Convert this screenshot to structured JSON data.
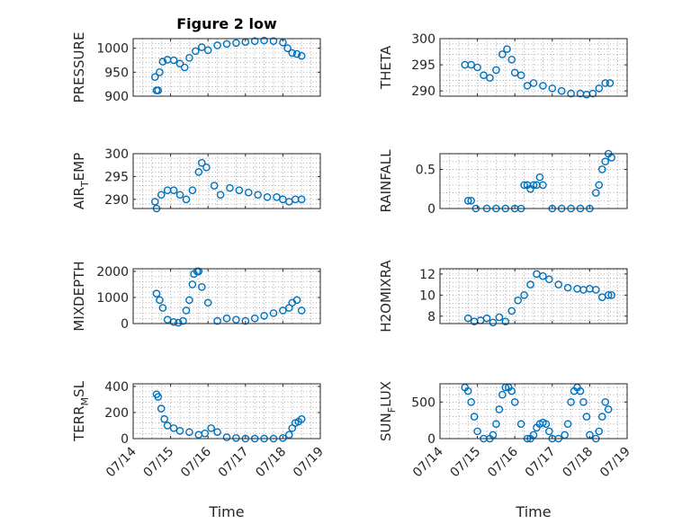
{
  "figure": {
    "title": "Figure 2 low",
    "marker_color": "#0072BD",
    "xlabel": "Time",
    "xtick_labels": [
      "07/14",
      "07/15",
      "07/16",
      "07/17",
      "07/18",
      "07/19"
    ]
  },
  "chart_data": [
    {
      "type": "scatter",
      "ylabel": "PRESSURE",
      "ylim": [
        900,
        1020
      ],
      "yticks": [
        900,
        950,
        1000
      ],
      "xlim": [
        "07/14",
        "07/19"
      ],
      "grid": true,
      "x": [
        "07/14 14:00",
        "07/14 15:00",
        "07/14 16:00",
        "07/14 17:00",
        "07/14 19:00",
        "07/14 22:00",
        "07/15 02:00",
        "07/15 06:00",
        "07/15 09:00",
        "07/15 12:00",
        "07/15 16:00",
        "07/15 20:00",
        "07/16 00:00",
        "07/16 06:00",
        "07/16 12:00",
        "07/16 18:00",
        "07/17 00:00",
        "07/17 06:00",
        "07/17 12:00",
        "07/17 18:00",
        "07/18 00:00",
        "07/18 03:00",
        "07/18 06:00",
        "07/18 09:00",
        "07/18 12:00"
      ],
      "values": [
        940,
        912,
        912,
        950,
        972,
        976,
        975,
        968,
        960,
        980,
        994,
        1002,
        996,
        1006,
        1009,
        1011,
        1013,
        1015,
        1016,
        1015,
        1012,
        1000,
        990,
        988,
        984
      ]
    },
    {
      "type": "scatter",
      "ylabel": "THETA",
      "ylim": [
        289,
        300
      ],
      "yticks": [
        290,
        295,
        300
      ],
      "xlim": [
        "07/14",
        "07/19"
      ],
      "grid": true,
      "x": [
        "07/14 16:00",
        "07/14 20:00",
        "07/15 00:00",
        "07/15 04:00",
        "07/15 08:00",
        "07/15 12:00",
        "07/15 16:00",
        "07/15 19:00",
        "07/15 22:00",
        "07/16 00:00",
        "07/16 04:00",
        "07/16 08:00",
        "07/16 12:00",
        "07/16 18:00",
        "07/17 00:00",
        "07/17 06:00",
        "07/17 12:00",
        "07/17 18:00",
        "07/17 22:00",
        "07/18 02:00",
        "07/18 06:00",
        "07/18 10:00",
        "07/18 13:00"
      ],
      "values": [
        295,
        295,
        294.5,
        293,
        292.5,
        294,
        297,
        298,
        296,
        293.5,
        293,
        291,
        291.5,
        291,
        290.5,
        290,
        289.5,
        289.5,
        289.3,
        289.5,
        290.5,
        291.5,
        291.5
      ]
    },
    {
      "type": "scatter",
      "ylabel": "AIR_TEMP",
      "ylim": [
        288,
        300
      ],
      "yticks": [
        290,
        295,
        300
      ],
      "xlim": [
        "07/14",
        "07/19"
      ],
      "grid": true,
      "x": [
        "07/14 14:00",
        "07/14 15:00",
        "07/14 18:00",
        "07/14 22:00",
        "07/15 02:00",
        "07/15 06:00",
        "07/15 10:00",
        "07/15 14:00",
        "07/15 18:00",
        "07/15 20:00",
        "07/15 23:00",
        "07/16 04:00",
        "07/16 08:00",
        "07/16 14:00",
        "07/16 20:00",
        "07/17 02:00",
        "07/17 08:00",
        "07/17 14:00",
        "07/17 20:00",
        "07/18 00:00",
        "07/18 04:00",
        "07/18 08:00",
        "07/18 12:00"
      ],
      "values": [
        289.5,
        288,
        291,
        292,
        292,
        291,
        290,
        292,
        296,
        298,
        297,
        293,
        291,
        292.5,
        292,
        291.5,
        291,
        290.5,
        290.5,
        290,
        289.5,
        290,
        290
      ]
    },
    {
      "type": "scatter",
      "ylabel": "RAINFALL",
      "ylim": [
        0,
        0.7
      ],
      "yticks": [
        0,
        0.5
      ],
      "xlim": [
        "07/14",
        "07/19"
      ],
      "grid": true,
      "x": [
        "07/14 18:00",
        "07/14 20:00",
        "07/14 23:00",
        "07/15 06:00",
        "07/15 12:00",
        "07/15 18:00",
        "07/16 00:00",
        "07/16 04:00",
        "07/16 06:00",
        "07/16 08:00",
        "07/16 10:00",
        "07/16 12:00",
        "07/16 14:00",
        "07/16 16:00",
        "07/16 18:00",
        "07/17 00:00",
        "07/17 06:00",
        "07/17 12:00",
        "07/17 18:00",
        "07/18 00:00",
        "07/18 04:00",
        "07/18 06:00",
        "07/18 08:00",
        "07/18 10:00",
        "07/18 12:00",
        "07/18 14:00"
      ],
      "values": [
        0.1,
        0.1,
        0,
        0,
        0,
        0,
        0,
        0,
        0.3,
        0.3,
        0.25,
        0.3,
        0.3,
        0.4,
        0.3,
        0,
        0,
        0,
        0,
        0,
        0.2,
        0.3,
        0.5,
        0.6,
        0.7,
        0.65
      ]
    },
    {
      "type": "scatter",
      "ylabel": "MIXDEPTH",
      "ylim": [
        0,
        2100
      ],
      "yticks": [
        0,
        1000,
        2000
      ],
      "xlim": [
        "07/14",
        "07/19"
      ],
      "grid": true,
      "x": [
        "07/14 15:00",
        "07/14 17:00",
        "07/14 19:00",
        "07/14 22:00",
        "07/15 02:00",
        "07/15 05:00",
        "07/15 08:00",
        "07/15 10:00",
        "07/15 12:00",
        "07/15 14:00",
        "07/15 15:00",
        "07/15 17:00",
        "07/15 18:00",
        "07/15 20:00",
        "07/16 00:00",
        "07/16 06:00",
        "07/16 12:00",
        "07/16 18:00",
        "07/17 00:00",
        "07/17 06:00",
        "07/17 12:00",
        "07/17 18:00",
        "07/18 00:00",
        "07/18 04:00",
        "07/18 06:00",
        "07/18 09:00",
        "07/18 12:00"
      ],
      "values": [
        1150,
        900,
        600,
        150,
        60,
        30,
        100,
        500,
        900,
        1500,
        1900,
        2000,
        2000,
        1400,
        800,
        100,
        200,
        150,
        100,
        200,
        300,
        400,
        500,
        600,
        800,
        900,
        500
      ]
    },
    {
      "type": "scatter",
      "ylabel": "H2OMIXRA",
      "ylim": [
        7.3,
        12.5
      ],
      "yticks": [
        8,
        10,
        12
      ],
      "xlim": [
        "07/14",
        "07/19"
      ],
      "grid": true,
      "x": [
        "07/14 18:00",
        "07/14 22:00",
        "07/15 02:00",
        "07/15 06:00",
        "07/15 10:00",
        "07/15 14:00",
        "07/15 18:00",
        "07/15 22:00",
        "07/16 02:00",
        "07/16 06:00",
        "07/16 10:00",
        "07/16 14:00",
        "07/16 18:00",
        "07/16 22:00",
        "07/17 04:00",
        "07/17 10:00",
        "07/17 16:00",
        "07/17 20:00",
        "07/18 00:00",
        "07/18 04:00",
        "07/18 08:00",
        "07/18 12:00",
        "07/18 14:00"
      ],
      "values": [
        7.8,
        7.5,
        7.6,
        7.8,
        7.4,
        7.9,
        7.5,
        8.5,
        9.5,
        10,
        11,
        12,
        11.8,
        11.5,
        11,
        10.7,
        10.6,
        10.5,
        10.6,
        10.5,
        9.8,
        10,
        10
      ]
    },
    {
      "type": "scatter",
      "ylabel": "TERR_MSL",
      "ylim": [
        0,
        420
      ],
      "yticks": [
        0,
        200,
        400
      ],
      "xlim": [
        "07/14",
        "07/19"
      ],
      "grid": true,
      "x": [
        "07/14 15:00",
        "07/14 16:00",
        "07/14 18:00",
        "07/14 20:00",
        "07/14 22:00",
        "07/15 02:00",
        "07/15 06:00",
        "07/15 12:00",
        "07/15 18:00",
        "07/15 22:00",
        "07/16 02:00",
        "07/16 06:00",
        "07/16 12:00",
        "07/16 18:00",
        "07/17 00:00",
        "07/17 06:00",
        "07/17 12:00",
        "07/17 18:00",
        "07/18 00:00",
        "07/18 04:00",
        "07/18 06:00",
        "07/18 08:00",
        "07/18 10:00",
        "07/18 12:00"
      ],
      "values": [
        340,
        320,
        230,
        150,
        100,
        80,
        60,
        50,
        30,
        40,
        80,
        50,
        10,
        5,
        0,
        0,
        0,
        0,
        5,
        30,
        80,
        120,
        130,
        150
      ]
    },
    {
      "type": "scatter",
      "ylabel": "SUN_FLUX",
      "ylim": [
        0,
        750
      ],
      "yticks": [
        0,
        500
      ],
      "xlim": [
        "07/14",
        "07/19"
      ],
      "grid": true,
      "x": [
        "07/14 16:00",
        "07/14 18:00",
        "07/14 20:00",
        "07/14 22:00",
        "07/15 00:00",
        "07/15 04:00",
        "07/15 08:00",
        "07/15 10:00",
        "07/15 12:00",
        "07/15 14:00",
        "07/15 16:00",
        "07/15 18:00",
        "07/15 20:00",
        "07/15 22:00",
        "07/16 00:00",
        "07/16 04:00",
        "07/16 08:00",
        "07/16 10:00",
        "07/16 12:00",
        "07/16 14:00",
        "07/16 16:00",
        "07/16 18:00",
        "07/16 20:00",
        "07/16 22:00",
        "07/17 00:00",
        "07/17 04:00",
        "07/17 08:00",
        "07/17 10:00",
        "07/17 12:00",
        "07/17 14:00",
        "07/17 16:00",
        "07/17 18:00",
        "07/17 20:00",
        "07/17 22:00",
        "07/18 00:00",
        "07/18 04:00",
        "07/18 06:00",
        "07/18 08:00",
        "07/18 10:00",
        "07/18 12:00"
      ],
      "values": [
        700,
        650,
        500,
        300,
        100,
        0,
        0,
        50,
        200,
        400,
        600,
        700,
        700,
        650,
        500,
        200,
        0,
        0,
        50,
        150,
        200,
        220,
        200,
        100,
        0,
        0,
        50,
        200,
        500,
        650,
        700,
        650,
        500,
        300,
        50,
        0,
        100,
        300,
        500,
        400
      ]
    }
  ]
}
